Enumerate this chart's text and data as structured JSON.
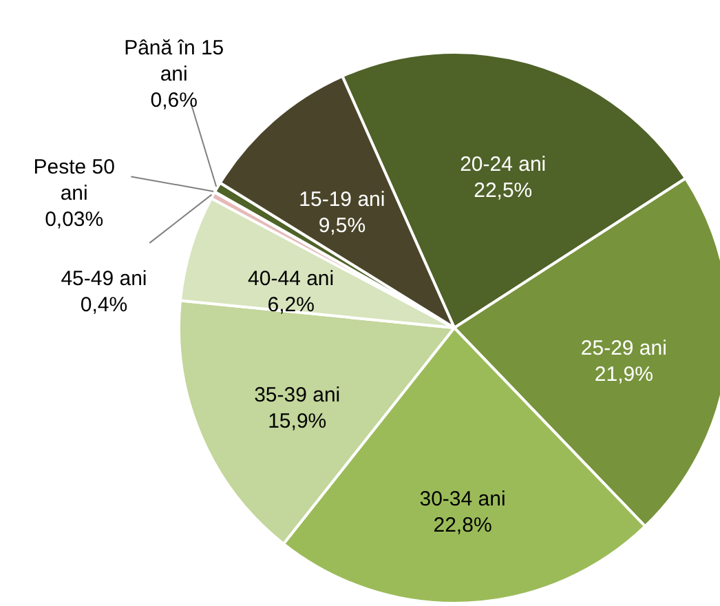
{
  "chart_data": {
    "type": "pie",
    "categories": [
      "20-24 ani",
      "25-29 ani",
      "30-34 ani",
      "35-39 ani",
      "40-44 ani",
      "45-49 ani",
      "Peste 50 ani",
      "Până în 15 ani",
      "15-19 ani"
    ],
    "values": [
      22.5,
      21.9,
      22.8,
      15.9,
      6.2,
      0.4,
      0.03,
      0.6,
      9.5
    ],
    "value_labels": [
      "22,5%",
      "21,9%",
      "22,8%",
      "15,9%",
      "6,2%",
      "0,4%",
      "0,03%",
      "0,6%",
      "9,5%"
    ],
    "colors": [
      "#4f6228",
      "#77933c",
      "#9bbb59",
      "#c3d69b",
      "#d7e4bd",
      "#e6b9b8",
      "#c4bd97",
      "#4f6228",
      "#4a452a"
    ]
  }
}
